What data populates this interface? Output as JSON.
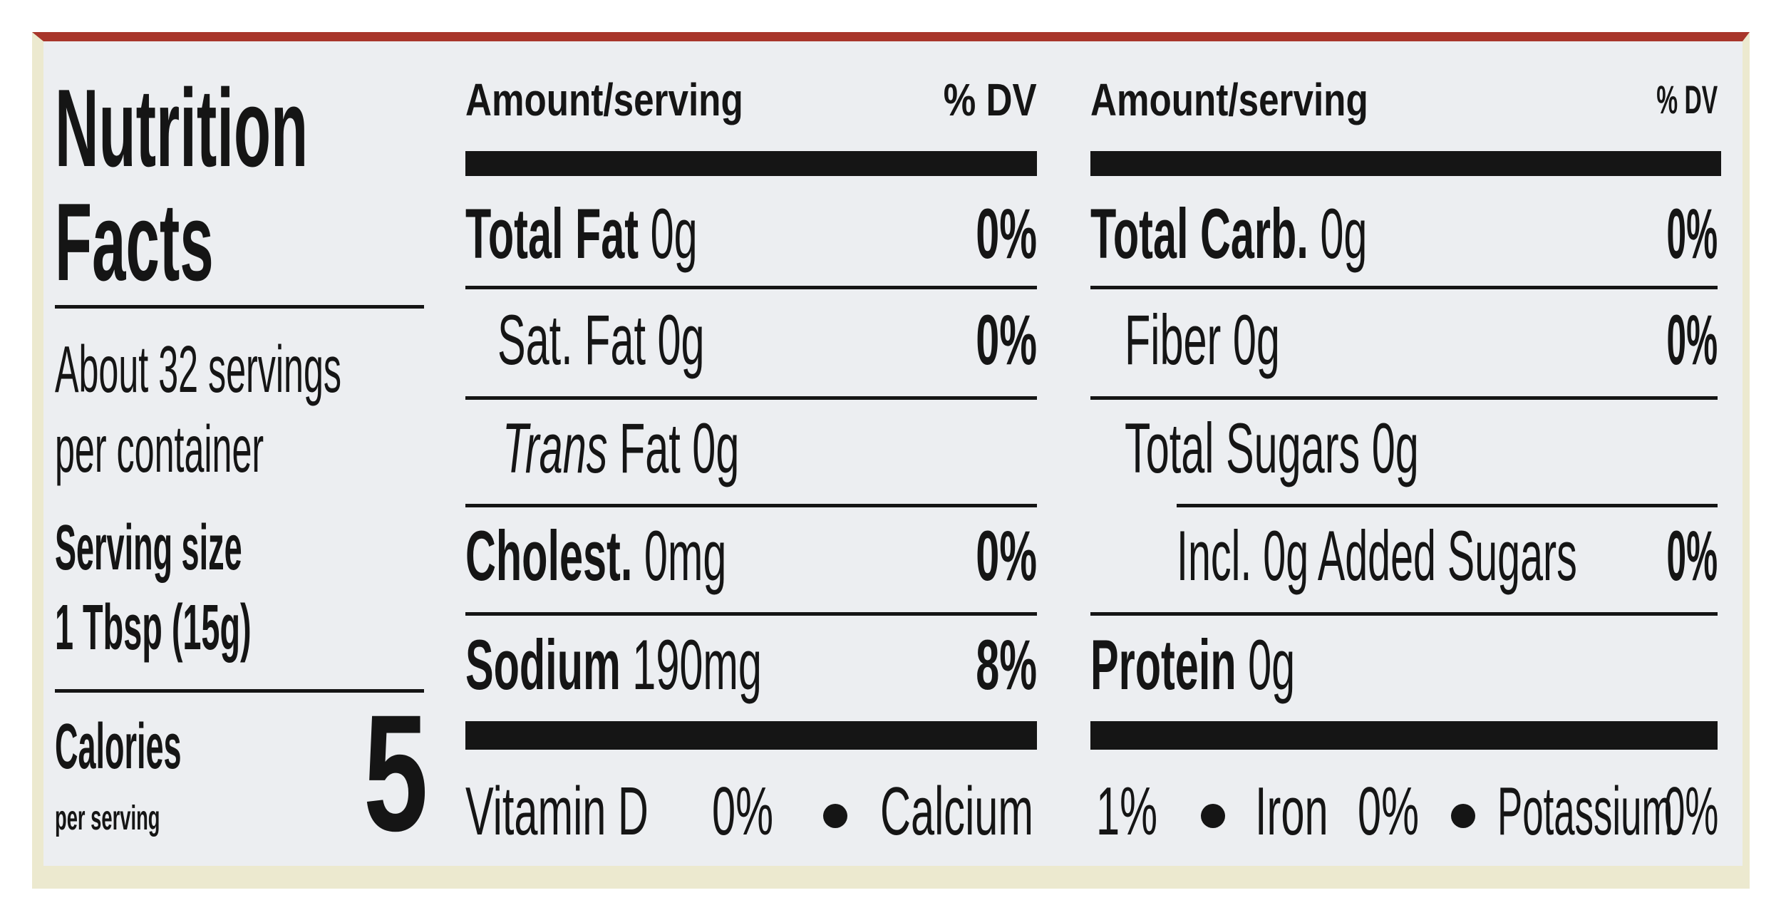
{
  "title": "Nutrition Facts",
  "servings": "About 32 servings per container",
  "serving_size": {
    "label": "Serving size",
    "value": "1 Tbsp (15g)"
  },
  "calories": {
    "label": "Calories",
    "sublabel": "per serving",
    "value": 5
  },
  "columns": [
    {
      "amount_header": "Amount/serving",
      "dv_header": "% DV",
      "rows": [
        {
          "name": "Total Fat",
          "amount": "0g",
          "dv": "0%"
        },
        {
          "name": "Sat. Fat",
          "amount": "0g",
          "dv": "0%"
        },
        {
          "name_italic": "Trans",
          "name": "Fat",
          "amount": "0g"
        },
        {
          "name": "Cholest.",
          "amount": "0mg",
          "dv": "0%"
        },
        {
          "name": "Sodium",
          "amount": "190mg",
          "dv": "8%"
        }
      ]
    },
    {
      "amount_header": "Amount/serving",
      "dv_header": "% DV",
      "rows": [
        {
          "name": "Total Carb.",
          "amount": "0g",
          "dv": "0%"
        },
        {
          "name": "Fiber",
          "amount": "0g",
          "dv": "0%"
        },
        {
          "name": "Total Sugars",
          "amount": "0g"
        },
        {
          "name": "Incl. 0g Added Sugars",
          "dv": "0%"
        },
        {
          "name": "Protein",
          "amount": "0g"
        }
      ]
    }
  ],
  "vitamins": [
    {
      "name": "Vitamin D",
      "dv": "0%"
    },
    {
      "name": "Calcium",
      "dv": "1%"
    },
    {
      "name": "Iron",
      "dv": "0%"
    },
    {
      "name": "Potassium",
      "dv": "0%"
    }
  ]
}
